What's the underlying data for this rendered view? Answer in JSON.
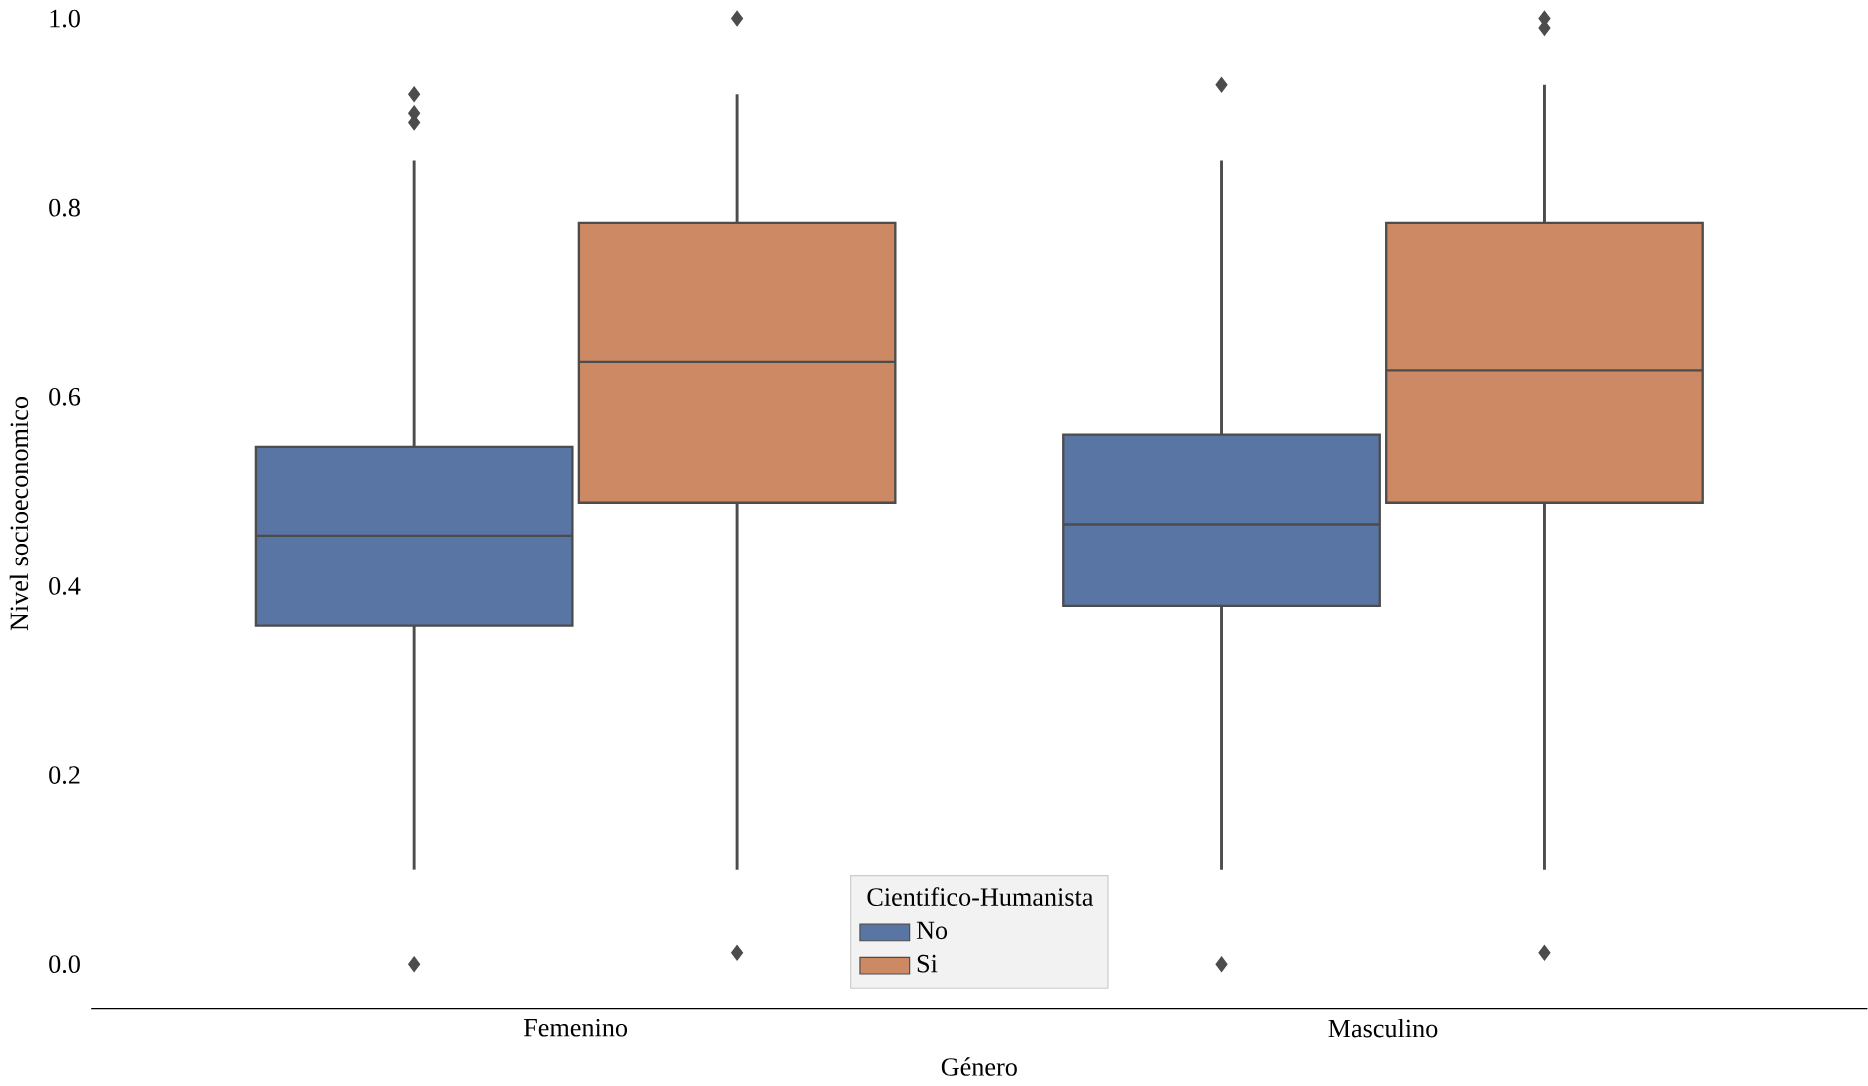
{
  "chart_data": {
    "type": "box",
    "xlabel": "Género",
    "ylabel": "Nivel socioeconomico",
    "legend_title": "Cientifico-Humanista",
    "categories": [
      "Femenino",
      "Masculino"
    ],
    "series": [
      {
        "name": "No",
        "color": "#5875a4",
        "boxes": [
          {
            "low": 0.1,
            "q1": 0.358,
            "median": 0.453,
            "q3": 0.547,
            "high": 0.85,
            "outliers": [
              0.0,
              0.89,
              0.9,
              0.92
            ]
          },
          {
            "low": 0.1,
            "q1": 0.379,
            "median": 0.465,
            "q3": 0.56,
            "high": 0.85,
            "outliers": [
              0.0,
              0.93
            ]
          }
        ]
      },
      {
        "name": "Si",
        "color": "#cc8963",
        "boxes": [
          {
            "low": 0.1,
            "q1": 0.488,
            "median": 0.637,
            "q3": 0.784,
            "high": 0.92,
            "outliers": [
              0.012,
              1.0
            ]
          },
          {
            "low": 0.1,
            "q1": 0.488,
            "median": 0.628,
            "q3": 0.784,
            "high": 0.93,
            "outliers": [
              0.012,
              0.99,
              1.0
            ]
          }
        ]
      }
    ],
    "ylim": [
      -0.047,
      1.0
    ],
    "yticks": [
      {
        "value": 0.0,
        "label": "0.0"
      },
      {
        "value": 0.2,
        "label": "0.2"
      },
      {
        "value": 0.4,
        "label": "0.4"
      },
      {
        "value": 0.6,
        "label": "0.6"
      },
      {
        "value": 0.8,
        "label": "0.8"
      },
      {
        "value": 1.0,
        "label": "1.0"
      }
    ],
    "grid": false,
    "legend": "bottom",
    "marker": "diamond"
  }
}
